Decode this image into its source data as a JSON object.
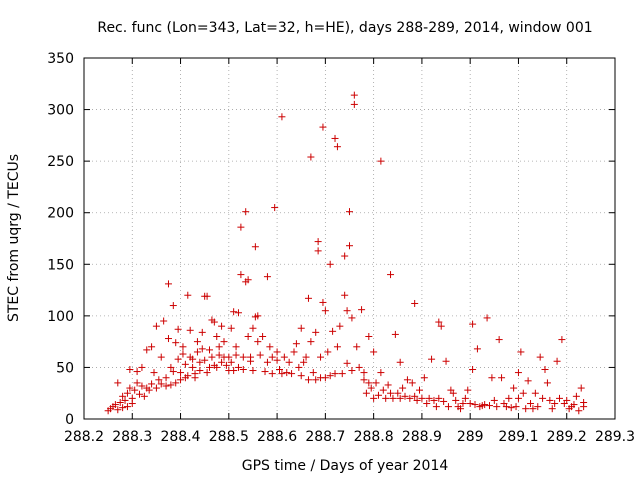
{
  "chart_data": {
    "type": "scatter",
    "title": "Rec. func (Lon=343, Lat=32, h=HE), days 288-289, 2014, window 001",
    "xlabel": "GPS time / Days of year 2014",
    "ylabel": "STEC from uqrg / TECUs",
    "xlim": [
      288.2,
      289.3
    ],
    "ylim": [
      0,
      350
    ],
    "xticks": [
      288.2,
      288.3,
      288.4,
      288.5,
      288.6,
      288.7,
      288.8,
      288.9,
      289.0,
      289.1,
      289.2,
      289.3
    ],
    "xtick_labels": [
      "288.2",
      "288.3",
      "288.4",
      "288.5",
      "288.6",
      "288.7",
      "288.8",
      "288.9",
      "289",
      "289.1",
      "289.2",
      "289.3"
    ],
    "yticks": [
      0,
      50,
      100,
      150,
      200,
      250,
      300,
      350
    ],
    "ytick_labels": [
      "0",
      "50",
      "100",
      "150",
      "200",
      "250",
      "300",
      "350"
    ],
    "grid": true,
    "marker": "+",
    "marker_color": "#cc0000",
    "series": [
      {
        "name": "STEC",
        "points": [
          [
            288.25,
            8
          ],
          [
            288.255,
            10
          ],
          [
            288.26,
            12
          ],
          [
            288.265,
            14
          ],
          [
            288.27,
            9
          ],
          [
            288.27,
            35
          ],
          [
            288.275,
            16
          ],
          [
            288.28,
            11
          ],
          [
            288.28,
            22
          ],
          [
            288.285,
            18
          ],
          [
            288.29,
            25
          ],
          [
            288.29,
            12
          ],
          [
            288.295,
            30
          ],
          [
            288.295,
            48
          ],
          [
            288.3,
            20
          ],
          [
            288.3,
            15
          ],
          [
            288.305,
            28
          ],
          [
            288.31,
            35
          ],
          [
            288.31,
            46
          ],
          [
            288.315,
            24
          ],
          [
            288.32,
            32
          ],
          [
            288.32,
            50
          ],
          [
            288.325,
            22
          ],
          [
            288.33,
            30
          ],
          [
            288.33,
            67
          ],
          [
            288.335,
            28
          ],
          [
            288.34,
            34
          ],
          [
            288.34,
            70
          ],
          [
            288.345,
            45
          ],
          [
            288.35,
            30
          ],
          [
            288.35,
            90
          ],
          [
            288.355,
            38
          ],
          [
            288.36,
            34
          ],
          [
            288.36,
            60
          ],
          [
            288.365,
            95
          ],
          [
            288.37,
            40
          ],
          [
            288.37,
            32
          ],
          [
            288.375,
            78
          ],
          [
            288.375,
            131
          ],
          [
            288.38,
            50
          ],
          [
            288.38,
            33
          ],
          [
            288.385,
            46
          ],
          [
            288.385,
            110
          ],
          [
            288.39,
            35
          ],
          [
            288.39,
            74
          ],
          [
            288.395,
            58
          ],
          [
            288.395,
            87
          ],
          [
            288.4,
            38
          ],
          [
            288.4,
            45
          ],
          [
            288.405,
            70
          ],
          [
            288.405,
            63
          ],
          [
            288.41,
            40
          ],
          [
            288.41,
            53
          ],
          [
            288.415,
            120
          ],
          [
            288.415,
            42
          ],
          [
            288.42,
            60
          ],
          [
            288.42,
            86
          ],
          [
            288.425,
            50
          ],
          [
            288.425,
            58
          ],
          [
            288.43,
            44
          ],
          [
            288.43,
            40
          ],
          [
            288.435,
            65
          ],
          [
            288.435,
            75
          ],
          [
            288.44,
            55
          ],
          [
            288.44,
            47
          ],
          [
            288.445,
            84
          ],
          [
            288.445,
            68
          ],
          [
            288.45,
            57
          ],
          [
            288.45,
            119
          ],
          [
            288.455,
            45
          ],
          [
            288.455,
            119
          ],
          [
            288.46,
            67
          ],
          [
            288.46,
            50
          ],
          [
            288.465,
            96
          ],
          [
            288.465,
            60
          ],
          [
            288.47,
            94
          ],
          [
            288.47,
            52
          ],
          [
            288.475,
            80
          ],
          [
            288.475,
            50
          ],
          [
            288.48,
            70
          ],
          [
            288.48,
            62
          ],
          [
            288.485,
            55
          ],
          [
            288.485,
            90
          ],
          [
            288.49,
            75
          ],
          [
            288.49,
            60
          ],
          [
            288.495,
            52
          ],
          [
            288.5,
            60
          ],
          [
            288.5,
            47
          ],
          [
            288.505,
            55
          ],
          [
            288.505,
            88
          ],
          [
            288.51,
            104
          ],
          [
            288.51,
            47
          ],
          [
            288.515,
            62
          ],
          [
            288.515,
            70
          ],
          [
            288.52,
            103
          ],
          [
            288.52,
            50
          ],
          [
            288.525,
            186
          ],
          [
            288.525,
            140
          ],
          [
            288.53,
            60
          ],
          [
            288.53,
            48
          ],
          [
            288.535,
            201
          ],
          [
            288.535,
            133
          ],
          [
            288.54,
            135
          ],
          [
            288.54,
            80
          ],
          [
            288.545,
            60
          ],
          [
            288.545,
            56
          ],
          [
            288.55,
            88
          ],
          [
            288.55,
            47
          ],
          [
            288.555,
            167
          ],
          [
            288.555,
            99
          ],
          [
            288.56,
            75
          ],
          [
            288.56,
            100
          ],
          [
            288.565,
            62
          ],
          [
            288.57,
            80
          ],
          [
            288.575,
            46
          ],
          [
            288.58,
            138
          ],
          [
            288.58,
            55
          ],
          [
            288.585,
            70
          ],
          [
            288.59,
            60
          ],
          [
            288.59,
            44
          ],
          [
            288.595,
            205
          ],
          [
            288.6,
            65
          ],
          [
            288.6,
            57
          ],
          [
            288.605,
            48
          ],
          [
            288.61,
            293
          ],
          [
            288.61,
            44
          ],
          [
            288.615,
            60
          ],
          [
            288.62,
            45
          ],
          [
            288.625,
            55
          ],
          [
            288.63,
            44
          ],
          [
            288.635,
            65
          ],
          [
            288.64,
            73
          ],
          [
            288.645,
            50
          ],
          [
            288.65,
            88
          ],
          [
            288.65,
            42
          ],
          [
            288.655,
            55
          ],
          [
            288.66,
            60
          ],
          [
            288.665,
            117
          ],
          [
            288.665,
            38
          ],
          [
            288.67,
            254
          ],
          [
            288.67,
            75
          ],
          [
            288.675,
            45
          ],
          [
            288.68,
            38
          ],
          [
            288.68,
            84
          ],
          [
            288.685,
            172
          ],
          [
            288.685,
            163
          ],
          [
            288.69,
            60
          ],
          [
            288.69,
            40
          ],
          [
            288.695,
            283
          ],
          [
            288.695,
            113
          ],
          [
            288.7,
            105
          ],
          [
            288.7,
            40
          ],
          [
            288.705,
            65
          ],
          [
            288.71,
            150
          ],
          [
            288.71,
            42
          ],
          [
            288.715,
            85
          ],
          [
            288.72,
            44
          ],
          [
            288.72,
            272
          ],
          [
            288.725,
            264
          ],
          [
            288.725,
            70
          ],
          [
            288.73,
            90
          ],
          [
            288.735,
            44
          ],
          [
            288.74,
            120
          ],
          [
            288.74,
            158
          ],
          [
            288.745,
            105
          ],
          [
            288.745,
            54
          ],
          [
            288.75,
            201
          ],
          [
            288.75,
            168
          ],
          [
            288.755,
            47
          ],
          [
            288.755,
            98
          ],
          [
            288.76,
            314
          ],
          [
            288.76,
            305
          ],
          [
            288.765,
            70
          ],
          [
            288.77,
            50
          ],
          [
            288.775,
            106
          ],
          [
            288.78,
            45
          ],
          [
            288.78,
            38
          ],
          [
            288.785,
            25
          ],
          [
            288.79,
            80
          ],
          [
            288.79,
            35
          ],
          [
            288.795,
            30
          ],
          [
            288.8,
            20
          ],
          [
            288.8,
            65
          ],
          [
            288.805,
            35
          ],
          [
            288.81,
            23
          ],
          [
            288.815,
            250
          ],
          [
            288.815,
            45
          ],
          [
            288.82,
            28
          ],
          [
            288.825,
            20
          ],
          [
            288.83,
            33
          ],
          [
            288.835,
            140
          ],
          [
            288.835,
            25
          ],
          [
            288.84,
            20
          ],
          [
            288.845,
            82
          ],
          [
            288.85,
            25
          ],
          [
            288.855,
            55
          ],
          [
            288.855,
            20
          ],
          [
            288.86,
            30
          ],
          [
            288.865,
            22
          ],
          [
            288.87,
            38
          ],
          [
            288.875,
            20
          ],
          [
            288.88,
            35
          ],
          [
            288.885,
            112
          ],
          [
            288.885,
            22
          ],
          [
            288.89,
            18
          ],
          [
            288.895,
            28
          ],
          [
            288.9,
            20
          ],
          [
            288.905,
            40
          ],
          [
            288.91,
            15
          ],
          [
            288.915,
            20
          ],
          [
            288.92,
            58
          ],
          [
            288.925,
            18
          ],
          [
            288.93,
            12
          ],
          [
            288.935,
            94
          ],
          [
            288.935,
            20
          ],
          [
            288.94,
            90
          ],
          [
            288.945,
            17
          ],
          [
            288.95,
            56
          ],
          [
            288.955,
            12
          ],
          [
            288.96,
            28
          ],
          [
            288.965,
            25
          ],
          [
            288.97,
            18
          ],
          [
            288.975,
            12
          ],
          [
            288.98,
            10
          ],
          [
            288.985,
            15
          ],
          [
            288.99,
            20
          ],
          [
            288.995,
            28
          ],
          [
            289.0,
            15
          ],
          [
            289.005,
            92
          ],
          [
            289.005,
            48
          ],
          [
            289.01,
            14
          ],
          [
            289.015,
            68
          ],
          [
            289.02,
            12
          ],
          [
            289.025,
            13
          ],
          [
            289.03,
            14
          ],
          [
            289.035,
            98
          ],
          [
            289.04,
            13
          ],
          [
            289.045,
            40
          ],
          [
            289.05,
            18
          ],
          [
            289.055,
            12
          ],
          [
            289.06,
            77
          ],
          [
            289.065,
            40
          ],
          [
            289.07,
            15
          ],
          [
            289.075,
            12
          ],
          [
            289.08,
            20
          ],
          [
            289.085,
            11
          ],
          [
            289.09,
            30
          ],
          [
            289.095,
            12
          ],
          [
            289.1,
            45
          ],
          [
            289.1,
            20
          ],
          [
            289.105,
            65
          ],
          [
            289.11,
            25
          ],
          [
            289.115,
            10
          ],
          [
            289.12,
            37
          ],
          [
            289.125,
            15
          ],
          [
            289.13,
            10
          ],
          [
            289.135,
            25
          ],
          [
            289.14,
            12
          ],
          [
            289.145,
            60
          ],
          [
            289.15,
            20
          ],
          [
            289.155,
            48
          ],
          [
            289.16,
            35
          ],
          [
            289.165,
            18
          ],
          [
            289.17,
            10
          ],
          [
            289.175,
            15
          ],
          [
            289.18,
            56
          ],
          [
            289.185,
            20
          ],
          [
            289.19,
            77
          ],
          [
            289.195,
            15
          ],
          [
            289.2,
            18
          ],
          [
            289.205,
            10
          ],
          [
            289.21,
            12
          ],
          [
            289.215,
            14
          ],
          [
            289.22,
            22
          ],
          [
            289.225,
            8
          ],
          [
            289.23,
            30
          ],
          [
            289.235,
            12
          ],
          [
            289.235,
            16
          ]
        ]
      }
    ]
  }
}
